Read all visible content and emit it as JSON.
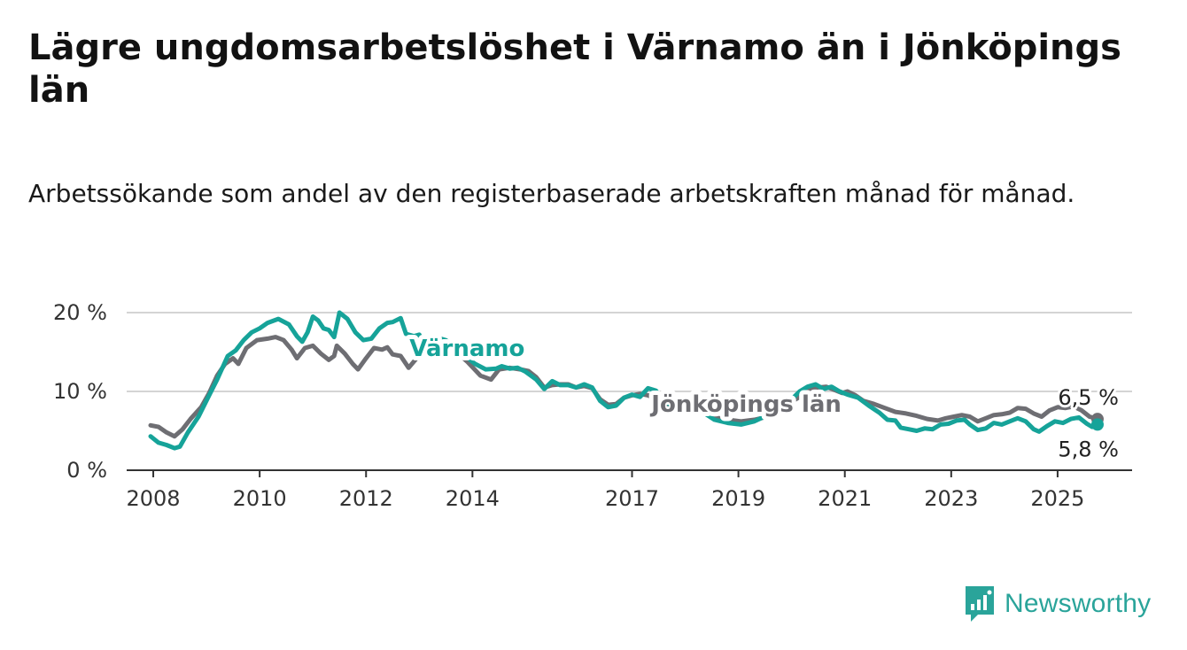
{
  "header": {
    "title": "Lägre ungdomsarbetslöshet i Värnamo än i Jönköpings län",
    "subtitle": "Arbetssökande som andel av den registerbaserade arbetskraften månad för månad."
  },
  "brand": {
    "name": "Newsworthy",
    "icon": "newsworthy-logo-icon",
    "color": "#2aa49a"
  },
  "chart_data": {
    "type": "line",
    "title": "Lägre ungdomsarbetslöshet i Värnamo än i Jönköpings län",
    "subtitle": "Arbetssökande som andel av den registerbaserade arbetskraften månad för månad.",
    "xlabel": "",
    "ylabel": "",
    "x_unit": "year",
    "xlim": [
      2007.5,
      2026.4
    ],
    "ylim": [
      0,
      20
    ],
    "yticks": [
      0,
      10,
      20
    ],
    "ytick_labels": [
      "0 %",
      "10 %",
      "20 %"
    ],
    "xticks": [
      2008,
      2010,
      2012,
      2014,
      2017,
      2019,
      2021,
      2023,
      2025
    ],
    "xtick_labels": [
      "2008",
      "2010",
      "2012",
      "2014",
      "2017",
      "2019",
      "2021",
      "2023",
      "2025"
    ],
    "grid": "horizontal",
    "legend": "inline labels",
    "series": [
      {
        "name": "Jönköpings län",
        "color": "#6e6e73",
        "end_label": "6,5 %",
        "points": [
          [
            2007.95,
            5.7
          ],
          [
            2008.1,
            5.5
          ],
          [
            2008.25,
            4.8
          ],
          [
            2008.4,
            4.3
          ],
          [
            2008.55,
            5.2
          ],
          [
            2008.7,
            6.5
          ],
          [
            2008.9,
            8.0
          ],
          [
            2009.05,
            9.8
          ],
          [
            2009.2,
            12.0
          ],
          [
            2009.35,
            13.5
          ],
          [
            2009.5,
            14.2
          ],
          [
            2009.6,
            13.5
          ],
          [
            2009.75,
            15.5
          ],
          [
            2009.95,
            16.5
          ],
          [
            2010.15,
            16.7
          ],
          [
            2010.3,
            16.9
          ],
          [
            2010.45,
            16.5
          ],
          [
            2010.6,
            15.3
          ],
          [
            2010.7,
            14.2
          ],
          [
            2010.85,
            15.5
          ],
          [
            2011.0,
            15.8
          ],
          [
            2011.15,
            14.8
          ],
          [
            2011.3,
            14.0
          ],
          [
            2011.4,
            14.5
          ],
          [
            2011.45,
            15.8
          ],
          [
            2011.6,
            14.8
          ],
          [
            2011.75,
            13.5
          ],
          [
            2011.85,
            12.8
          ],
          [
            2012.0,
            14.2
          ],
          [
            2012.15,
            15.5
          ],
          [
            2012.3,
            15.3
          ],
          [
            2012.4,
            15.6
          ],
          [
            2012.5,
            14.7
          ],
          [
            2012.65,
            14.5
          ],
          [
            2012.8,
            13.0
          ],
          [
            2012.95,
            14.2
          ],
          [
            2013.1,
            15.5
          ],
          [
            2013.3,
            16.2
          ],
          [
            2013.5,
            15.8
          ],
          [
            2013.7,
            15.0
          ],
          [
            2013.9,
            13.8
          ],
          [
            2014.15,
            12.0
          ],
          [
            2014.35,
            11.5
          ],
          [
            2014.5,
            12.8
          ],
          [
            2014.7,
            13.0
          ],
          [
            2014.9,
            12.8
          ],
          [
            2015.05,
            12.6
          ],
          [
            2015.2,
            11.8
          ],
          [
            2015.35,
            10.5
          ],
          [
            2015.5,
            10.8
          ],
          [
            2015.65,
            10.9
          ],
          [
            2015.8,
            10.9
          ],
          [
            2015.95,
            10.5
          ],
          [
            2016.1,
            10.7
          ],
          [
            2016.25,
            10.4
          ],
          [
            2016.4,
            9.0
          ],
          [
            2016.55,
            8.3
          ],
          [
            2016.7,
            8.4
          ],
          [
            2016.85,
            9.2
          ],
          [
            2017.0,
            9.5
          ],
          [
            2017.15,
            9.7
          ],
          [
            2017.3,
            9.5
          ],
          [
            2017.45,
            9.0
          ],
          [
            2017.6,
            8.4
          ],
          [
            2017.75,
            8.0
          ],
          [
            2017.9,
            8.3
          ],
          [
            2018.1,
            8.0
          ],
          [
            2018.3,
            7.5
          ],
          [
            2018.55,
            6.7
          ],
          [
            2018.8,
            6.4
          ],
          [
            2019.05,
            6.2
          ],
          [
            2019.3,
            6.4
          ],
          [
            2019.55,
            6.8
          ],
          [
            2019.75,
            7.5
          ],
          [
            2019.95,
            8.5
          ],
          [
            2020.15,
            9.3
          ],
          [
            2020.35,
            10.2
          ],
          [
            2020.5,
            10.5
          ],
          [
            2020.65,
            10.6
          ],
          [
            2020.8,
            10.2
          ],
          [
            2020.95,
            9.8
          ],
          [
            2021.05,
            10.0
          ],
          [
            2021.2,
            9.5
          ],
          [
            2021.35,
            8.8
          ],
          [
            2021.55,
            8.4
          ],
          [
            2021.75,
            7.9
          ],
          [
            2021.95,
            7.4
          ],
          [
            2022.15,
            7.2
          ],
          [
            2022.35,
            6.9
          ],
          [
            2022.55,
            6.5
          ],
          [
            2022.75,
            6.3
          ],
          [
            2022.9,
            6.6
          ],
          [
            2023.05,
            6.8
          ],
          [
            2023.2,
            7.0
          ],
          [
            2023.35,
            6.8
          ],
          [
            2023.5,
            6.2
          ],
          [
            2023.65,
            6.6
          ],
          [
            2023.8,
            7.0
          ],
          [
            2023.95,
            7.1
          ],
          [
            2024.1,
            7.3
          ],
          [
            2024.25,
            7.9
          ],
          [
            2024.4,
            7.8
          ],
          [
            2024.55,
            7.2
          ],
          [
            2024.7,
            6.8
          ],
          [
            2024.85,
            7.6
          ],
          [
            2025.0,
            8.0
          ],
          [
            2025.15,
            7.9
          ],
          [
            2025.3,
            8.1
          ],
          [
            2025.45,
            7.6
          ],
          [
            2025.6,
            6.8
          ],
          [
            2025.75,
            6.5
          ]
        ]
      },
      {
        "name": "Värnamo",
        "color": "#16a399",
        "end_label": "5,8 %",
        "points": [
          [
            2007.95,
            4.3
          ],
          [
            2008.1,
            3.5
          ],
          [
            2008.25,
            3.2
          ],
          [
            2008.4,
            2.8
          ],
          [
            2008.5,
            3.0
          ],
          [
            2008.65,
            4.8
          ],
          [
            2008.85,
            6.8
          ],
          [
            2009.05,
            9.5
          ],
          [
            2009.2,
            11.5
          ],
          [
            2009.4,
            14.5
          ],
          [
            2009.55,
            15.2
          ],
          [
            2009.7,
            16.5
          ],
          [
            2009.85,
            17.5
          ],
          [
            2010.0,
            18.0
          ],
          [
            2010.15,
            18.7
          ],
          [
            2010.35,
            19.2
          ],
          [
            2010.55,
            18.5
          ],
          [
            2010.7,
            17.0
          ],
          [
            2010.8,
            16.3
          ],
          [
            2010.9,
            17.5
          ],
          [
            2011.0,
            19.5
          ],
          [
            2011.1,
            19.0
          ],
          [
            2011.2,
            18.0
          ],
          [
            2011.3,
            17.8
          ],
          [
            2011.4,
            16.9
          ],
          [
            2011.5,
            20.0
          ],
          [
            2011.65,
            19.2
          ],
          [
            2011.8,
            17.5
          ],
          [
            2011.95,
            16.5
          ],
          [
            2012.1,
            16.7
          ],
          [
            2012.25,
            18.0
          ],
          [
            2012.4,
            18.7
          ],
          [
            2012.5,
            18.8
          ],
          [
            2012.65,
            19.3
          ],
          [
            2012.75,
            17.3
          ],
          [
            2012.9,
            17.0
          ],
          [
            2013.0,
            17.2
          ],
          [
            2013.1,
            16.0
          ],
          [
            2013.25,
            15.8
          ],
          [
            2013.35,
            16.8
          ],
          [
            2013.5,
            16.5
          ],
          [
            2013.7,
            15.5
          ],
          [
            2013.9,
            14.3
          ],
          [
            2014.05,
            13.5
          ],
          [
            2014.25,
            12.8
          ],
          [
            2014.45,
            12.9
          ],
          [
            2014.55,
            13.2
          ],
          [
            2014.7,
            12.9
          ],
          [
            2014.85,
            13.0
          ],
          [
            2015.0,
            12.5
          ],
          [
            2015.2,
            11.5
          ],
          [
            2015.35,
            10.3
          ],
          [
            2015.5,
            11.3
          ],
          [
            2015.65,
            10.8
          ],
          [
            2015.8,
            10.8
          ],
          [
            2015.95,
            10.5
          ],
          [
            2016.1,
            10.9
          ],
          [
            2016.25,
            10.5
          ],
          [
            2016.4,
            8.8
          ],
          [
            2016.55,
            8.0
          ],
          [
            2016.7,
            8.2
          ],
          [
            2016.85,
            9.2
          ],
          [
            2017.0,
            9.6
          ],
          [
            2017.15,
            9.3
          ],
          [
            2017.3,
            10.4
          ],
          [
            2017.45,
            10.1
          ],
          [
            2017.6,
            8.8
          ],
          [
            2017.75,
            8.2
          ],
          [
            2017.85,
            9.2
          ],
          [
            2018.05,
            8.5
          ],
          [
            2018.3,
            7.5
          ],
          [
            2018.55,
            6.4
          ],
          [
            2018.8,
            6.0
          ],
          [
            2019.05,
            5.8
          ],
          [
            2019.3,
            6.2
          ],
          [
            2019.55,
            7.0
          ],
          [
            2019.8,
            8.2
          ],
          [
            2020.0,
            9.0
          ],
          [
            2020.15,
            10.0
          ],
          [
            2020.3,
            10.6
          ],
          [
            2020.45,
            10.9
          ],
          [
            2020.6,
            10.3
          ],
          [
            2020.75,
            10.6
          ],
          [
            2020.9,
            10.0
          ],
          [
            2021.05,
            9.6
          ],
          [
            2021.25,
            9.2
          ],
          [
            2021.45,
            8.2
          ],
          [
            2021.65,
            7.3
          ],
          [
            2021.8,
            6.4
          ],
          [
            2021.95,
            6.3
          ],
          [
            2022.05,
            5.4
          ],
          [
            2022.2,
            5.2
          ],
          [
            2022.35,
            5.0
          ],
          [
            2022.5,
            5.3
          ],
          [
            2022.65,
            5.2
          ],
          [
            2022.8,
            5.8
          ],
          [
            2022.95,
            5.9
          ],
          [
            2023.1,
            6.3
          ],
          [
            2023.25,
            6.4
          ],
          [
            2023.35,
            5.8
          ],
          [
            2023.5,
            5.1
          ],
          [
            2023.65,
            5.3
          ],
          [
            2023.8,
            6.0
          ],
          [
            2023.95,
            5.8
          ],
          [
            2024.1,
            6.2
          ],
          [
            2024.25,
            6.6
          ],
          [
            2024.4,
            6.2
          ],
          [
            2024.55,
            5.2
          ],
          [
            2024.65,
            4.9
          ],
          [
            2024.8,
            5.6
          ],
          [
            2024.95,
            6.2
          ],
          [
            2025.1,
            6.0
          ],
          [
            2025.25,
            6.5
          ],
          [
            2025.4,
            6.7
          ],
          [
            2025.55,
            5.9
          ],
          [
            2025.65,
            5.5
          ],
          [
            2025.75,
            5.8
          ]
        ]
      }
    ]
  }
}
